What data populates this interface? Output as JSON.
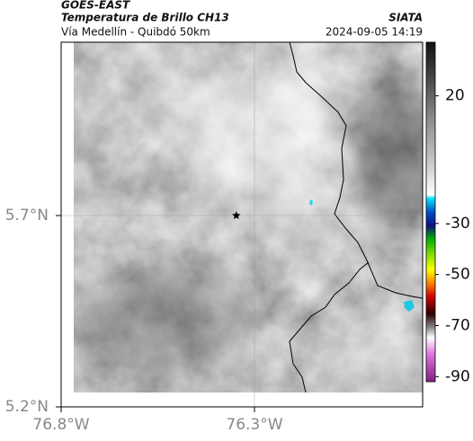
{
  "header": {
    "title": "GOES-EAST",
    "subtitle": "Temperatura de Brillo CH13",
    "route": "Vía Medellín - Quibdó 50km",
    "source": "SIATA",
    "datetime": "2024-09-05 14:19"
  },
  "map": {
    "xlim": [
      -76.8,
      -75.865
    ],
    "ylim": [
      5.2,
      6.153
    ],
    "xticks": [
      {
        "value": -76.8,
        "label": "76.8°W"
      },
      {
        "value": -76.3,
        "label": "76.3°W"
      }
    ],
    "yticks": [
      {
        "value": 5.2,
        "label": "5.2°N"
      },
      {
        "value": 5.7,
        "label": "5.7°N"
      }
    ],
    "grid": true,
    "marker": {
      "lon": -76.347,
      "lat": 5.7
    }
  },
  "colorbar": {
    "lim": [
      -92,
      41
    ],
    "ticks": [
      20,
      -30,
      -50,
      -70,
      -90
    ]
  }
}
